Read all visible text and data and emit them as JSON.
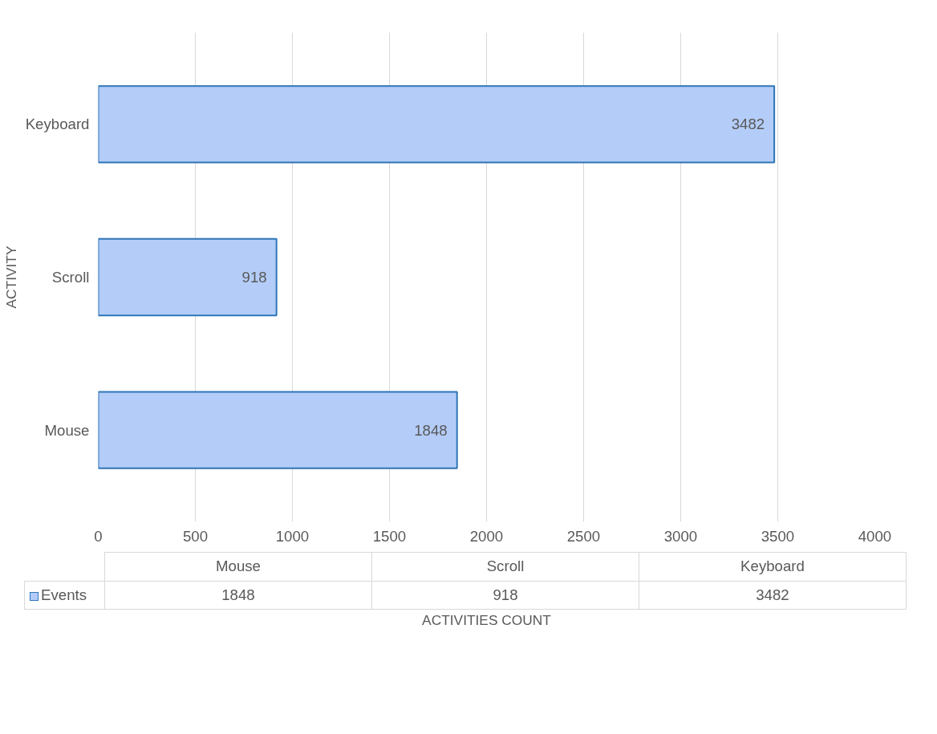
{
  "chart_data": {
    "type": "bar",
    "orientation": "horizontal",
    "xlabel": "ACTIVITIES COUNT",
    "ylabel": "ACTIVITY",
    "categories": [
      "Keyboard",
      "Scroll",
      "Mouse"
    ],
    "series": [
      {
        "name": "Events",
        "color": "#b4cdf8",
        "values": [
          3482,
          918,
          1848
        ]
      }
    ],
    "annotations": [
      "1848",
      "918",
      "3482"
    ],
    "xlim": [
      0,
      4000
    ],
    "xticks": [
      0,
      500,
      1000,
      1500,
      2000,
      2500,
      3000,
      3500,
      4000
    ],
    "grid": "x",
    "data_labels": true,
    "legend": "bottom"
  }
}
